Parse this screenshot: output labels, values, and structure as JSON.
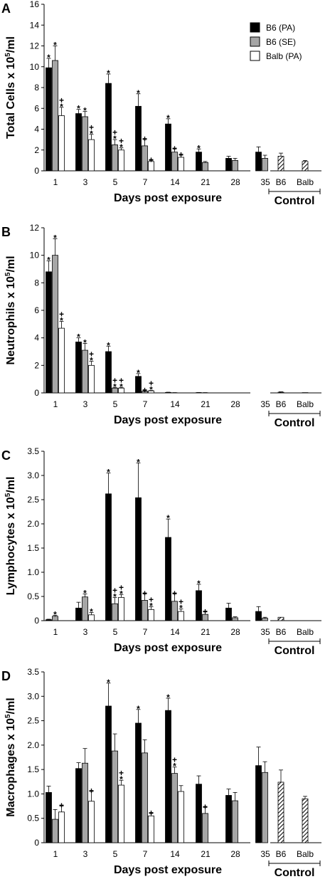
{
  "legend": {
    "entries": [
      "B6 (PA)",
      "B6 (SE)",
      "Balb (PA)"
    ],
    "colors": [
      "#000000",
      "#a6a6a6",
      "#ffffff"
    ]
  },
  "x_label": "Days post exposure",
  "control_label": "Control",
  "control_groups": [
    "B6",
    "Balb"
  ],
  "chart_data": [
    {
      "type": "bar",
      "panel": "A",
      "ylabel": "Total Cells x 10^5/ml",
      "ylim": [
        0,
        16
      ],
      "yticks": [
        0,
        2,
        4,
        6,
        8,
        10,
        12,
        14,
        16
      ],
      "yticklabels": [
        "0",
        "2",
        "4",
        "6",
        "8",
        "10",
        "12",
        "14",
        "16"
      ],
      "xlabel": "Days post exposure",
      "categories": [
        "1",
        "3",
        "5",
        "7",
        "14",
        "21",
        "28",
        "35"
      ],
      "series": [
        {
          "name": "B6 (PA)",
          "values": [
            9.9,
            5.5,
            8.4,
            6.2,
            4.5,
            1.8,
            1.2,
            1.8
          ],
          "errors": [
            0.9,
            0.4,
            0.9,
            1.2,
            0.5,
            0.3,
            0.2,
            0.5
          ],
          "marks": [
            "*",
            "*",
            "*",
            "*",
            "*",
            "*",
            "",
            ""
          ]
        },
        {
          "name": "B6 (SE)",
          "values": [
            10.6,
            5.2,
            2.5,
            2.4,
            1.8,
            0.8,
            1.0,
            1.2
          ],
          "errors": [
            1.4,
            0.5,
            0.5,
            0.6,
            0.3,
            0.1,
            0.2,
            0.3
          ],
          "marks": [
            "*",
            "*",
            "+\n*",
            "+",
            "+",
            "",
            "",
            ""
          ]
        },
        {
          "name": "Balb (PA)",
          "values": [
            5.3,
            3.0,
            2.0,
            0.9,
            1.3,
            null,
            null,
            null
          ],
          "errors": [
            0.8,
            0.5,
            0.2,
            0.1,
            0.2,
            null,
            null,
            null
          ],
          "marks": [
            "+\n*",
            "+\n*",
            "+\n*",
            "+",
            "+",
            "",
            "",
            ""
          ]
        }
      ],
      "control": {
        "categories": [
          "B6",
          "Balb"
        ],
        "values": [
          1.4,
          0.9
        ],
        "errors": [
          0.3,
          0.1
        ]
      }
    },
    {
      "type": "bar",
      "panel": "B",
      "ylabel": "Neutrophils x 10^5/ml",
      "ylim": [
        0,
        12
      ],
      "yticks": [
        0,
        2,
        4,
        6,
        8,
        10,
        12
      ],
      "yticklabels": [
        "0",
        "2",
        "4",
        "6",
        "8",
        "10",
        "12"
      ],
      "xlabel": "Days post exposure",
      "categories": [
        "1",
        "3",
        "5",
        "7",
        "14",
        "21",
        "28",
        "35"
      ],
      "series": [
        {
          "name": "B6 (PA)",
          "values": [
            8.8,
            3.7,
            3.0,
            1.2,
            0.03,
            0.02,
            0.0,
            0.0
          ],
          "errors": [
            0.8,
            0.3,
            0.4,
            0.2,
            0.02,
            0.01,
            0.0,
            0.0
          ],
          "marks": [
            "*",
            "*",
            "*",
            "*",
            "",
            "",
            "",
            ""
          ]
        },
        {
          "name": "B6 (SE)",
          "values": [
            10.0,
            3.1,
            0.35,
            0.12,
            0.01,
            0.01,
            0.0,
            0.0
          ],
          "errors": [
            1.2,
            0.5,
            0.05,
            0.03,
            0.01,
            0.01,
            0.0,
            0.0
          ],
          "marks": [
            "*",
            "*",
            "+\n*",
            "+",
            "",
            "",
            "",
            ""
          ]
        },
        {
          "name": "Balb (PA)",
          "values": [
            4.7,
            2.0,
            0.35,
            0.15,
            null,
            null,
            null,
            null
          ],
          "errors": [
            0.5,
            0.3,
            0.05,
            0.03,
            null,
            null,
            null,
            null
          ],
          "marks": [
            "+\n*",
            "+\n*",
            "+\n*",
            "+\n*",
            "",
            "",
            "",
            ""
          ]
        }
      ],
      "control": {
        "categories": [
          "B6",
          "Balb"
        ],
        "values": [
          0.05,
          0.02
        ],
        "errors": [
          0.03,
          0.0
        ]
      }
    },
    {
      "type": "bar",
      "panel": "C",
      "ylabel": "Lymphocytes x 10^5/ml",
      "ylim": [
        0,
        3.5
      ],
      "yticks": [
        0,
        0.5,
        1,
        1.5,
        2,
        2.5,
        3,
        3.5
      ],
      "yticklabels": [
        "0",
        "0.5",
        "1.0",
        "1.5",
        "2.0",
        "2.5",
        "3.0",
        "3.5"
      ],
      "xlabel": "Days post exposure",
      "categories": [
        "1",
        "3",
        "5",
        "7",
        "14",
        "21",
        "28",
        "35"
      ],
      "series": [
        {
          "name": "B6 (PA)",
          "values": [
            0.02,
            0.26,
            2.62,
            2.54,
            1.72,
            0.62,
            0.26,
            0.19
          ],
          "errors": [
            0.01,
            0.12,
            0.43,
            0.72,
            0.38,
            0.13,
            0.1,
            0.1
          ],
          "marks": [
            "",
            "",
            "*",
            "*",
            "*",
            "*",
            "",
            ""
          ]
        },
        {
          "name": "B6 (SE)",
          "values": [
            0.09,
            0.49,
            0.35,
            0.42,
            0.4,
            0.13,
            0.06,
            0.05
          ],
          "errors": [
            0.02,
            0.06,
            0.13,
            0.13,
            0.15,
            0.05,
            0.02,
            0.02
          ],
          "marks": [
            "*",
            "*",
            "+\n*",
            "+",
            "+",
            "+",
            "",
            ""
          ]
        },
        {
          "name": "Balb (PA)",
          "values": [
            null,
            0.12,
            0.48,
            0.23,
            0.19,
            null,
            null,
            null
          ],
          "errors": [
            null,
            0.05,
            0.06,
            0.06,
            0.05,
            null,
            null,
            null
          ],
          "marks": [
            "",
            "*",
            "+\n*",
            "+\n*",
            "+\n*",
            "",
            "",
            ""
          ]
        }
      ],
      "control": {
        "categories": [
          "B6",
          "Balb"
        ],
        "values": [
          0.07,
          0.0
        ],
        "errors": [
          0.0,
          0.0
        ]
      }
    },
    {
      "type": "bar",
      "panel": "D",
      "ylabel": "Macrophages x 10^5/ml",
      "ylim": [
        0,
        3.5
      ],
      "yticks": [
        0,
        0.5,
        1,
        1.5,
        2,
        2.5,
        3,
        3.5
      ],
      "yticklabels": [
        "0",
        "0.5",
        "1.0",
        "1.5",
        "2.0",
        "2.5",
        "3.0",
        "3.5"
      ],
      "xlabel": "Days post exposure",
      "categories": [
        "1",
        "3",
        "5",
        "7",
        "14",
        "21",
        "28",
        "35"
      ],
      "series": [
        {
          "name": "B6 (PA)",
          "values": [
            1.03,
            1.52,
            2.8,
            2.45,
            2.71,
            1.2,
            0.97,
            1.58
          ],
          "errors": [
            0.13,
            0.12,
            0.47,
            0.28,
            0.25,
            0.17,
            0.13,
            0.38
          ],
          "marks": [
            "",
            "",
            "*",
            "*",
            "*",
            "",
            "",
            ""
          ]
        },
        {
          "name": "B6 (SE)",
          "values": [
            0.48,
            1.63,
            1.88,
            1.84,
            1.42,
            0.6,
            0.86,
            1.44
          ],
          "errors": [
            0.2,
            0.3,
            0.35,
            0.27,
            0.13,
            0.12,
            0.17,
            0.22
          ],
          "marks": [
            "",
            "",
            "",
            "",
            "+\n*",
            "+",
            "",
            ""
          ]
        },
        {
          "name": "Balb (PA)",
          "values": [
            0.63,
            0.85,
            1.18,
            0.55,
            1.05,
            null,
            null,
            null
          ],
          "errors": [
            0.12,
            0.2,
            0.1,
            0.05,
            0.12,
            null,
            null,
            null
          ],
          "marks": [
            "+",
            "+",
            "+\n*",
            "+",
            "",
            "",
            "",
            ""
          ]
        }
      ],
      "control": {
        "categories": [
          "B6",
          "Balb"
        ],
        "values": [
          1.24,
          0.9
        ],
        "errors": [
          0.25,
          0.05
        ]
      }
    }
  ]
}
